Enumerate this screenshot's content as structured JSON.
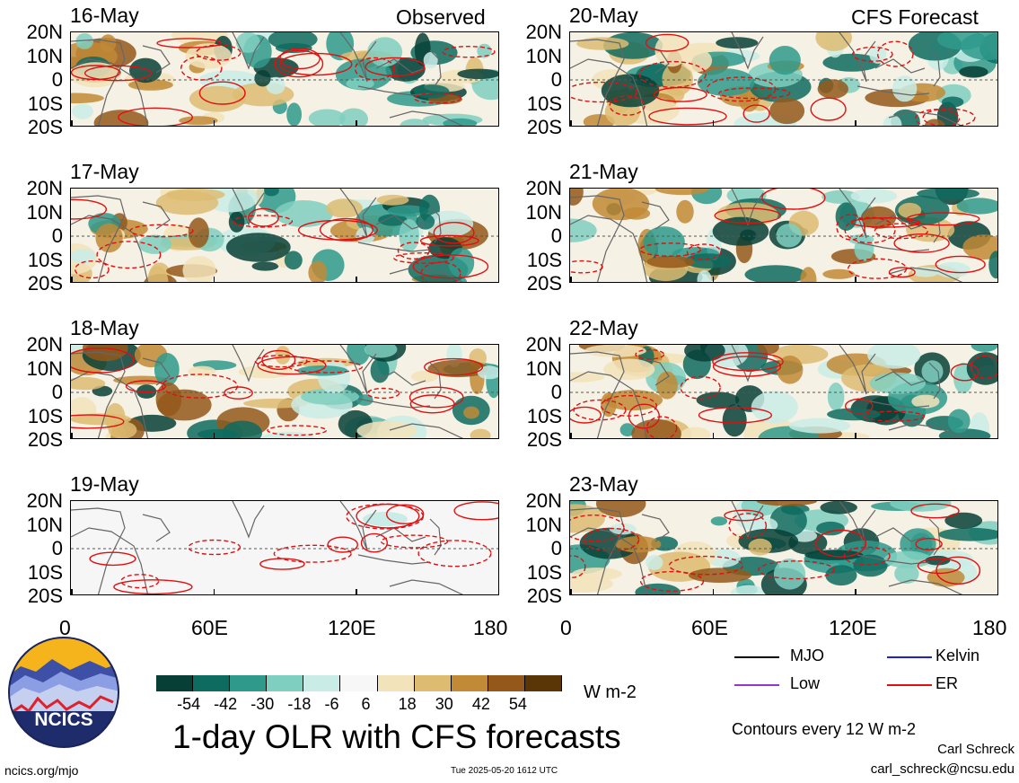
{
  "observed_label": "Observed",
  "forecast_label": "CFS Forecast",
  "lat_labels": [
    "20N",
    "10N",
    "0",
    "10S",
    "20S"
  ],
  "lon_labels": [
    "0",
    "60E",
    "120E",
    "180"
  ],
  "panels_left": [
    {
      "date": "16-May"
    },
    {
      "date": "17-May"
    },
    {
      "date": "18-May"
    },
    {
      "date": "19-May"
    }
  ],
  "panels_right": [
    {
      "date": "20-May"
    },
    {
      "date": "21-May"
    },
    {
      "date": "22-May"
    },
    {
      "date": "23-May"
    }
  ],
  "colorbar": {
    "labels": [
      "-54",
      "-42",
      "-30",
      "-18",
      "-6",
      "6",
      "18",
      "30",
      "42",
      "54"
    ],
    "colors": [
      "#073f36",
      "#0e6b5f",
      "#2f9a8c",
      "#7fcfc0",
      "#c9ece6",
      "#f7f7f7",
      "#f3e3bb",
      "#ddbc72",
      "#c18a36",
      "#94581b",
      "#5a3506"
    ],
    "units": "W m-2"
  },
  "legend": [
    {
      "label": "MJO",
      "color": "#000000"
    },
    {
      "label": "Kelvin",
      "color": "#1f1fd8"
    },
    {
      "label": "Low",
      "color": "#9933cc"
    },
    {
      "label": "ER",
      "color": "#e01010"
    }
  ],
  "contour_note": "Contours every 12 W m-2",
  "title": "1-day OLR with CFS forecasts",
  "logo_text": "NCICS",
  "footer_left": "ncics.org/mjo",
  "footer_center": "Tue 2025-05-20 1612 UTC",
  "author": "Carl Schreck",
  "email": "carl_schreck@ncsu.edu"
}
